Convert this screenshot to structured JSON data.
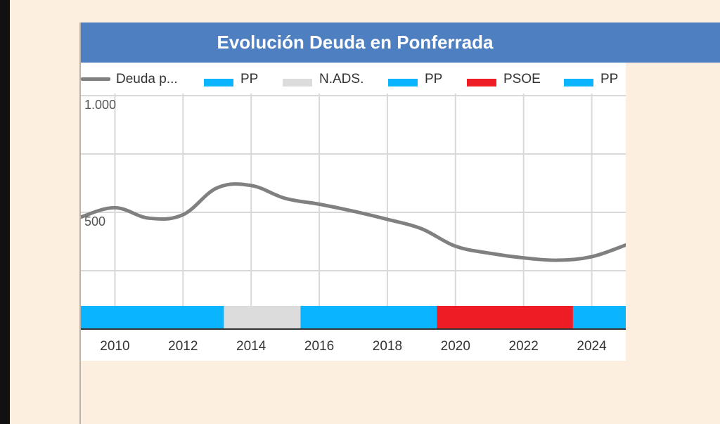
{
  "chart": {
    "title": "Evolución Deuda en Ponferrada"
  },
  "legend": [
    {
      "label": "Deuda p...",
      "kind": "line",
      "color": "#808080"
    },
    {
      "label": "PP",
      "kind": "rect",
      "color": "#0ab4ff"
    },
    {
      "label": "N.ADS.",
      "kind": "rect",
      "color": "#dcdcdc"
    },
    {
      "label": "PP",
      "kind": "rect",
      "color": "#0ab4ff"
    },
    {
      "label": "PSOE",
      "kind": "rect",
      "color": "#ee1c25"
    },
    {
      "label": "PP",
      "kind": "rect",
      "color": "#0ab4ff"
    }
  ],
  "chart_data": {
    "type": "line",
    "title": "Evolución Deuda en Ponferrada",
    "xlabel": "",
    "ylabel": "",
    "xlim": [
      2009,
      2025
    ],
    "ylim": [
      0,
      1000
    ],
    "grid": true,
    "legend_position": "top",
    "x_ticks": [
      2010,
      2012,
      2014,
      2016,
      2018,
      2020,
      2022,
      2024
    ],
    "y_ticks": [
      {
        "value": 1000,
        "label": "1.000"
      },
      {
        "value": 500,
        "label": "500"
      }
    ],
    "series": [
      {
        "name": "Deuda p...",
        "color": "#808080",
        "x": [
          2009,
          2010,
          2011,
          2012,
          2013,
          2014,
          2015,
          2016,
          2017,
          2018,
          2019,
          2020,
          2021,
          2022,
          2023,
          2024,
          2025
        ],
        "y": [
          480,
          520,
          475,
          490,
          605,
          615,
          560,
          535,
          505,
          470,
          430,
          355,
          325,
          305,
          295,
          310,
          360
        ]
      }
    ],
    "periods": [
      {
        "label": "PP",
        "start": 2009,
        "end": 2013.2,
        "color": "#0ab4ff"
      },
      {
        "label": "N.ADS.",
        "start": 2013.2,
        "end": 2015.45,
        "color": "#dcdcdc"
      },
      {
        "label": "PP",
        "start": 2015.45,
        "end": 2019.45,
        "color": "#0ab4ff"
      },
      {
        "label": "PSOE",
        "start": 2019.45,
        "end": 2023.45,
        "color": "#ee1c25"
      },
      {
        "label": "PP",
        "start": 2023.45,
        "end": 2025,
        "color": "#0ab4ff"
      }
    ]
  }
}
